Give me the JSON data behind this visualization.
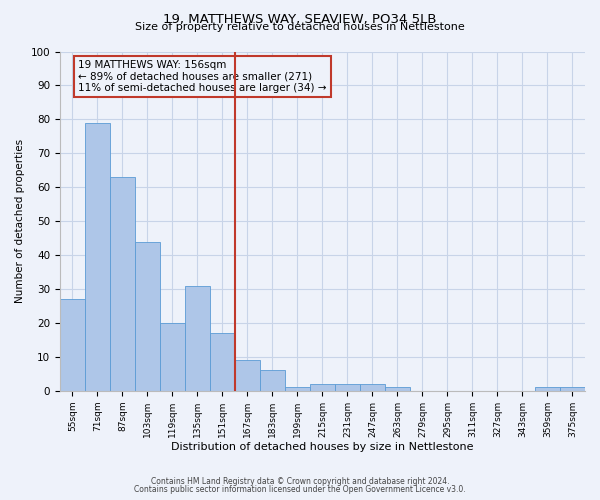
{
  "title1": "19, MATTHEWS WAY, SEAVIEW, PO34 5LB",
  "title2": "Size of property relative to detached houses in Nettlestone",
  "xlabel": "Distribution of detached houses by size in Nettlestone",
  "ylabel": "Number of detached properties",
  "categories": [
    "55sqm",
    "71sqm",
    "87sqm",
    "103sqm",
    "119sqm",
    "135sqm",
    "151sqm",
    "167sqm",
    "183sqm",
    "199sqm",
    "215sqm",
    "231sqm",
    "247sqm",
    "263sqm",
    "279sqm",
    "295sqm",
    "311sqm",
    "327sqm",
    "343sqm",
    "359sqm",
    "375sqm"
  ],
  "values": [
    27,
    79,
    63,
    44,
    20,
    31,
    17,
    9,
    6,
    1,
    2,
    2,
    2,
    1,
    0,
    0,
    0,
    0,
    0,
    1,
    1
  ],
  "bar_color": "#aec6e8",
  "bar_edge_color": "#5b9bd5",
  "vline_color": "#c0392b",
  "ylim": [
    0,
    100
  ],
  "annotation_line1": "19 MATTHEWS WAY: 156sqm",
  "annotation_line2": "← 89% of detached houses are smaller (271)",
  "annotation_line3": "11% of semi-detached houses are larger (34) →",
  "annotation_box_color": "#c0392b",
  "footer1": "Contains HM Land Registry data © Crown copyright and database right 2024.",
  "footer2": "Contains public sector information licensed under the Open Government Licence v3.0.",
  "bg_color": "#eef2fa",
  "grid_color": "#c8d4e8",
  "vline_pos": 6.5
}
